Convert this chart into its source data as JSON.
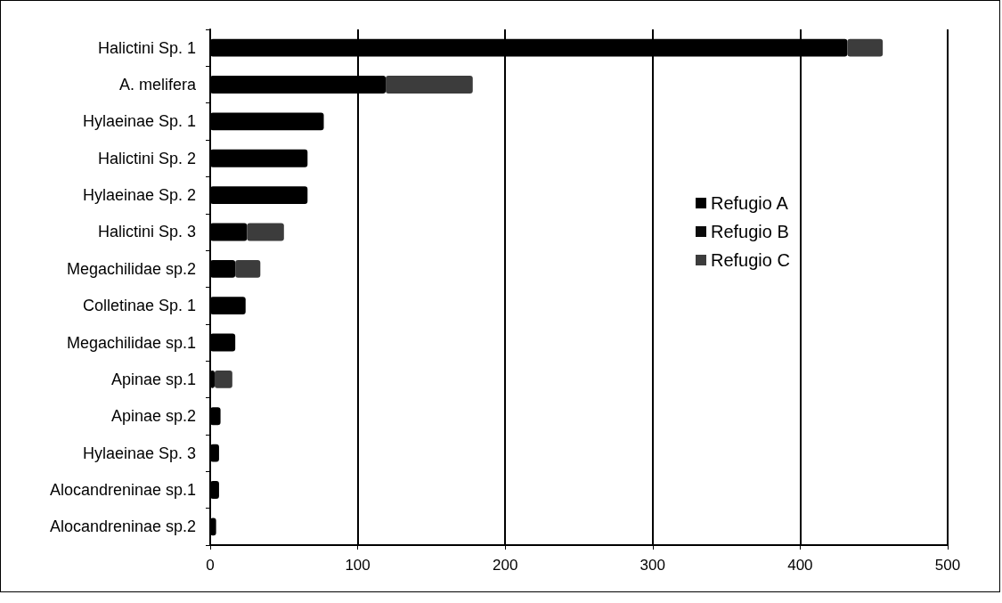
{
  "chart_data": {
    "type": "bar",
    "orientation": "horizontal",
    "stacked": true,
    "categories": [
      "Halictini Sp. 1",
      "A. melifera",
      "Hylaeinae Sp. 1",
      "Halictini Sp. 2",
      "Hylaeinae Sp. 2",
      "Halictini Sp. 3",
      "Megachilidae sp.2",
      "Colletinae Sp. 1",
      "Megachilidae sp.1",
      "Apinae sp.1",
      "Apinae sp.2",
      "Hylaeinae Sp. 3",
      "Alocandreninae sp.1",
      "Alocandreninae sp.2"
    ],
    "series": [
      {
        "name": "Refugio A",
        "color": "#000000",
        "values": [
          432,
          119,
          77,
          66,
          66,
          25,
          17,
          24,
          17,
          3,
          7,
          6,
          6,
          4
        ]
      },
      {
        "name": "Refugio B",
        "color": "#0a0a0a",
        "values": [
          null,
          null,
          null,
          null,
          null,
          null,
          null,
          null,
          null,
          null,
          null,
          null,
          null,
          null
        ]
      },
      {
        "name": "Refugio C",
        "color": "#3c3c3c",
        "values": [
          24,
          59,
          null,
          null,
          null,
          25,
          17,
          null,
          null,
          12,
          null,
          null,
          null,
          null
        ]
      }
    ],
    "xlim": [
      0,
      500
    ],
    "xticks": [
      0,
      100,
      200,
      300,
      400,
      500
    ],
    "grid": "x",
    "legend": "right"
  }
}
